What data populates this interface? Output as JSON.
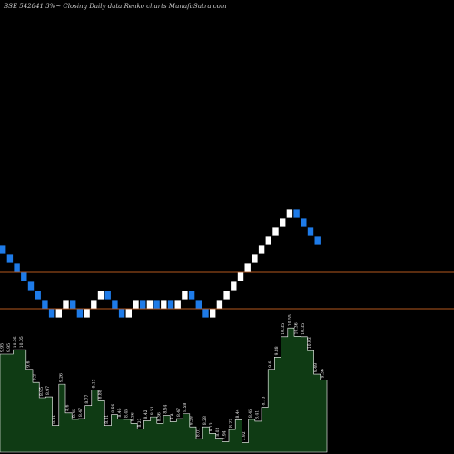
{
  "chart_data": {
    "type": "renko",
    "title": "BSE 542841 3%~ Closing Daily data Renko charts MunafaSutra.com",
    "colors": {
      "background": "#000000",
      "brick_up": "#ffffff",
      "brick_down": "#1e7be8",
      "level_line": "#b4581e",
      "volume_fill": "#0f3b14",
      "volume_edge": "#ffffff",
      "volume_text": "#ffffff"
    },
    "ylim": [
      0,
      38
    ],
    "levels": [
      10,
      6
    ],
    "bricks": [
      {
        "dir": "down",
        "close": 12
      },
      {
        "dir": "down",
        "close": 11
      },
      {
        "dir": "down",
        "close": 10
      },
      {
        "dir": "down",
        "close": 9
      },
      {
        "dir": "down",
        "close": 8
      },
      {
        "dir": "down",
        "close": 7
      },
      {
        "dir": "down",
        "close": 6
      },
      {
        "dir": "down",
        "close": 5
      },
      {
        "dir": "up",
        "close": 6
      },
      {
        "dir": "up",
        "close": 7
      },
      {
        "dir": "down",
        "close": 6
      },
      {
        "dir": "down",
        "close": 5
      },
      {
        "dir": "up",
        "close": 6
      },
      {
        "dir": "up",
        "close": 7
      },
      {
        "dir": "up",
        "close": 8
      },
      {
        "dir": "down",
        "close": 7
      },
      {
        "dir": "down",
        "close": 6
      },
      {
        "dir": "down",
        "close": 5
      },
      {
        "dir": "up",
        "close": 6
      },
      {
        "dir": "up",
        "close": 7
      },
      {
        "dir": "down",
        "close": 6
      },
      {
        "dir": "up",
        "close": 7
      },
      {
        "dir": "down",
        "close": 6
      },
      {
        "dir": "up",
        "close": 7
      },
      {
        "dir": "down",
        "close": 6
      },
      {
        "dir": "up",
        "close": 7
      },
      {
        "dir": "up",
        "close": 8
      },
      {
        "dir": "down",
        "close": 7
      },
      {
        "dir": "down",
        "close": 6
      },
      {
        "dir": "down",
        "close": 5
      },
      {
        "dir": "up",
        "close": 6
      },
      {
        "dir": "up",
        "close": 7
      },
      {
        "dir": "up",
        "close": 8
      },
      {
        "dir": "up",
        "close": 9
      },
      {
        "dir": "up",
        "close": 10
      },
      {
        "dir": "up",
        "close": 11
      },
      {
        "dir": "up",
        "close": 12
      },
      {
        "dir": "up",
        "close": 13
      },
      {
        "dir": "up",
        "close": 14
      },
      {
        "dir": "up",
        "close": 15
      },
      {
        "dir": "up",
        "close": 16
      },
      {
        "dir": "up",
        "close": 17
      },
      {
        "dir": "down",
        "close": 16
      },
      {
        "dir": "down",
        "close": 15
      },
      {
        "dir": "down",
        "close": 14
      },
      {
        "dir": "down",
        "close": 13
      }
    ],
    "volume_labels": [
      "9.95",
      "9.95",
      "10.05",
      "10.05",
      "9.6",
      "9.3",
      "8.95",
      "8.97",
      "8.31",
      "9.26",
      "8.6",
      "8.45",
      "8.47",
      "8.77",
      "9.13",
      "8.88",
      "8.31",
      "8.56",
      "8.46",
      "8.45",
      "8.36",
      "8.23",
      "8.42",
      "8.51",
      "8.36",
      "8.54",
      "8.4",
      "8.47",
      "8.58",
      "8.28",
      "8.01",
      "8.28",
      "8.13",
      "8.02",
      "7.94",
      "8.22",
      "8.44",
      "7.92",
      "8.45",
      "8.41",
      "8.73",
      "9.6",
      "9.88",
      "10.35",
      "10.55",
      "10.36",
      "10.35",
      "10.03",
      "9.49",
      "9.36"
    ]
  }
}
